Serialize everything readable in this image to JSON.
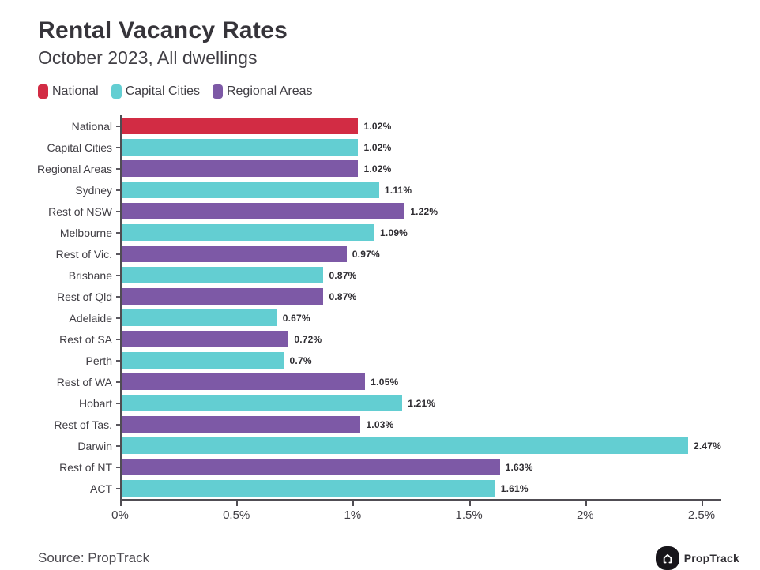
{
  "header": {
    "title": "Rental Vacancy Rates",
    "subtitle": "October 2023, All dwellings"
  },
  "legend": [
    {
      "label": "National",
      "color": "#d22c44"
    },
    {
      "label": "Capital Cities",
      "color": "#63ced2"
    },
    {
      "label": "Regional Areas",
      "color": "#7d59a6"
    }
  ],
  "chart_data": {
    "type": "bar",
    "orientation": "horizontal",
    "title": "Rental Vacancy Rates",
    "subtitle": "October 2023, All dwellings",
    "xlabel": "",
    "ylabel": "",
    "xlim": [
      0,
      2.585
    ],
    "grid": false,
    "legend_position": "top",
    "x_ticks": [
      {
        "value": 0,
        "label": "0%"
      },
      {
        "value": 0.5,
        "label": "0.5%"
      },
      {
        "value": 1,
        "label": "1%"
      },
      {
        "value": 1.5,
        "label": "1.5%"
      },
      {
        "value": 2,
        "label": "2%"
      },
      {
        "value": 2.5,
        "label": "2.5%"
      }
    ],
    "series_colors": {
      "National": "#d22c44",
      "Capital Cities": "#63ced2",
      "Regional Areas": "#7d59a6"
    },
    "rows": [
      {
        "category": "National",
        "value": 1.02,
        "label": "1.02%",
        "series": "National"
      },
      {
        "category": "Capital Cities",
        "value": 1.02,
        "label": "1.02%",
        "series": "Capital Cities"
      },
      {
        "category": "Regional Areas",
        "value": 1.02,
        "label": "1.02%",
        "series": "Regional Areas"
      },
      {
        "category": "Sydney",
        "value": 1.11,
        "label": "1.11%",
        "series": "Capital Cities"
      },
      {
        "category": "Rest of NSW",
        "value": 1.22,
        "label": "1.22%",
        "series": "Regional Areas"
      },
      {
        "category": "Melbourne",
        "value": 1.09,
        "label": "1.09%",
        "series": "Capital Cities"
      },
      {
        "category": "Rest of Vic.",
        "value": 0.97,
        "label": "0.97%",
        "series": "Regional Areas"
      },
      {
        "category": "Brisbane",
        "value": 0.87,
        "label": "0.87%",
        "series": "Capital Cities"
      },
      {
        "category": "Rest of Qld",
        "value": 0.87,
        "label": "0.87%",
        "series": "Regional Areas"
      },
      {
        "category": "Adelaide",
        "value": 0.67,
        "label": "0.67%",
        "series": "Capital Cities"
      },
      {
        "category": "Rest of SA",
        "value": 0.72,
        "label": "0.72%",
        "series": "Regional Areas"
      },
      {
        "category": "Perth",
        "value": 0.7,
        "label": "0.7%",
        "series": "Capital Cities"
      },
      {
        "category": "Rest of WA",
        "value": 1.05,
        "label": "1.05%",
        "series": "Regional Areas"
      },
      {
        "category": "Hobart",
        "value": 1.21,
        "label": "1.21%",
        "series": "Capital Cities"
      },
      {
        "category": "Rest of Tas.",
        "value": 1.03,
        "label": "1.03%",
        "series": "Regional Areas"
      },
      {
        "category": "Darwin",
        "value": 2.47,
        "label": "2.47%",
        "series": "Capital Cities"
      },
      {
        "category": "Rest of NT",
        "value": 1.63,
        "label": "1.63%",
        "series": "Regional Areas"
      },
      {
        "category": "ACT",
        "value": 1.61,
        "label": "1.61%",
        "series": "Capital Cities"
      }
    ]
  },
  "footer": {
    "source": "Source: PropTrack",
    "brand": "PropTrack",
    "logo_icon": "proptrack-house-icon"
  }
}
